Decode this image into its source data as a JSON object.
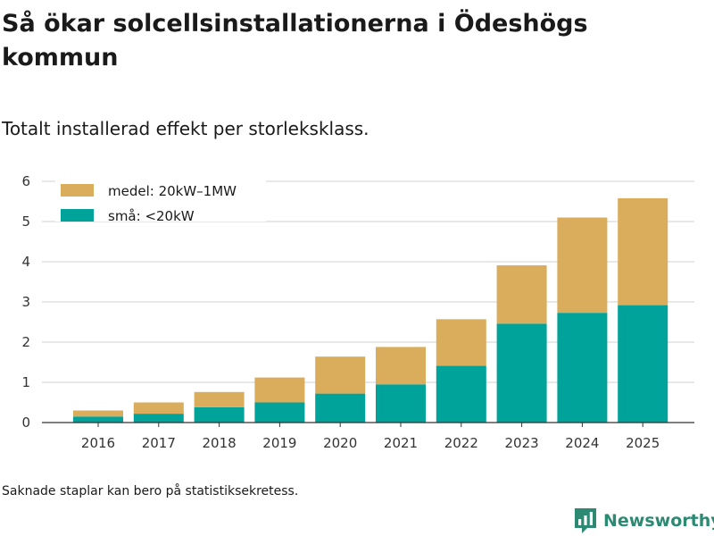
{
  "title": "Så ökar solcellsinstallationerna i Ödeshögs kommun",
  "subtitle": "Totalt installerad effekt per storleksklass.",
  "note": "Saknade staplar kan bero på statistiksekretess.",
  "brand": {
    "name": "Newsworthy",
    "color": "#2c8a72"
  },
  "chart_data": {
    "type": "bar",
    "stacked": true,
    "categories": [
      "2016",
      "2017",
      "2018",
      "2019",
      "2020",
      "2021",
      "2022",
      "2023",
      "2024",
      "2025"
    ],
    "series": [
      {
        "name": "små: <20kW",
        "color": "#00a39a",
        "values": [
          0.15,
          0.22,
          0.38,
          0.5,
          0.72,
          0.95,
          1.41,
          2.46,
          2.73,
          2.92
        ]
      },
      {
        "name": "medel: 20kW–1MW",
        "color": "#d9ad5b",
        "values": [
          0.15,
          0.28,
          0.38,
          0.62,
          0.92,
          0.93,
          1.16,
          1.45,
          2.37,
          2.66
        ]
      }
    ],
    "legend": [
      {
        "label": "medel: 20kW–1MW",
        "color": "#d9ad5b"
      },
      {
        "label": "små: <20kW",
        "color": "#00a39a"
      }
    ],
    "legend_position": "top-left",
    "ylim": [
      0,
      6
    ],
    "yticks": [
      0,
      1,
      2,
      3,
      4,
      5,
      6
    ],
    "xlabel": "",
    "ylabel": "",
    "grid": true
  }
}
